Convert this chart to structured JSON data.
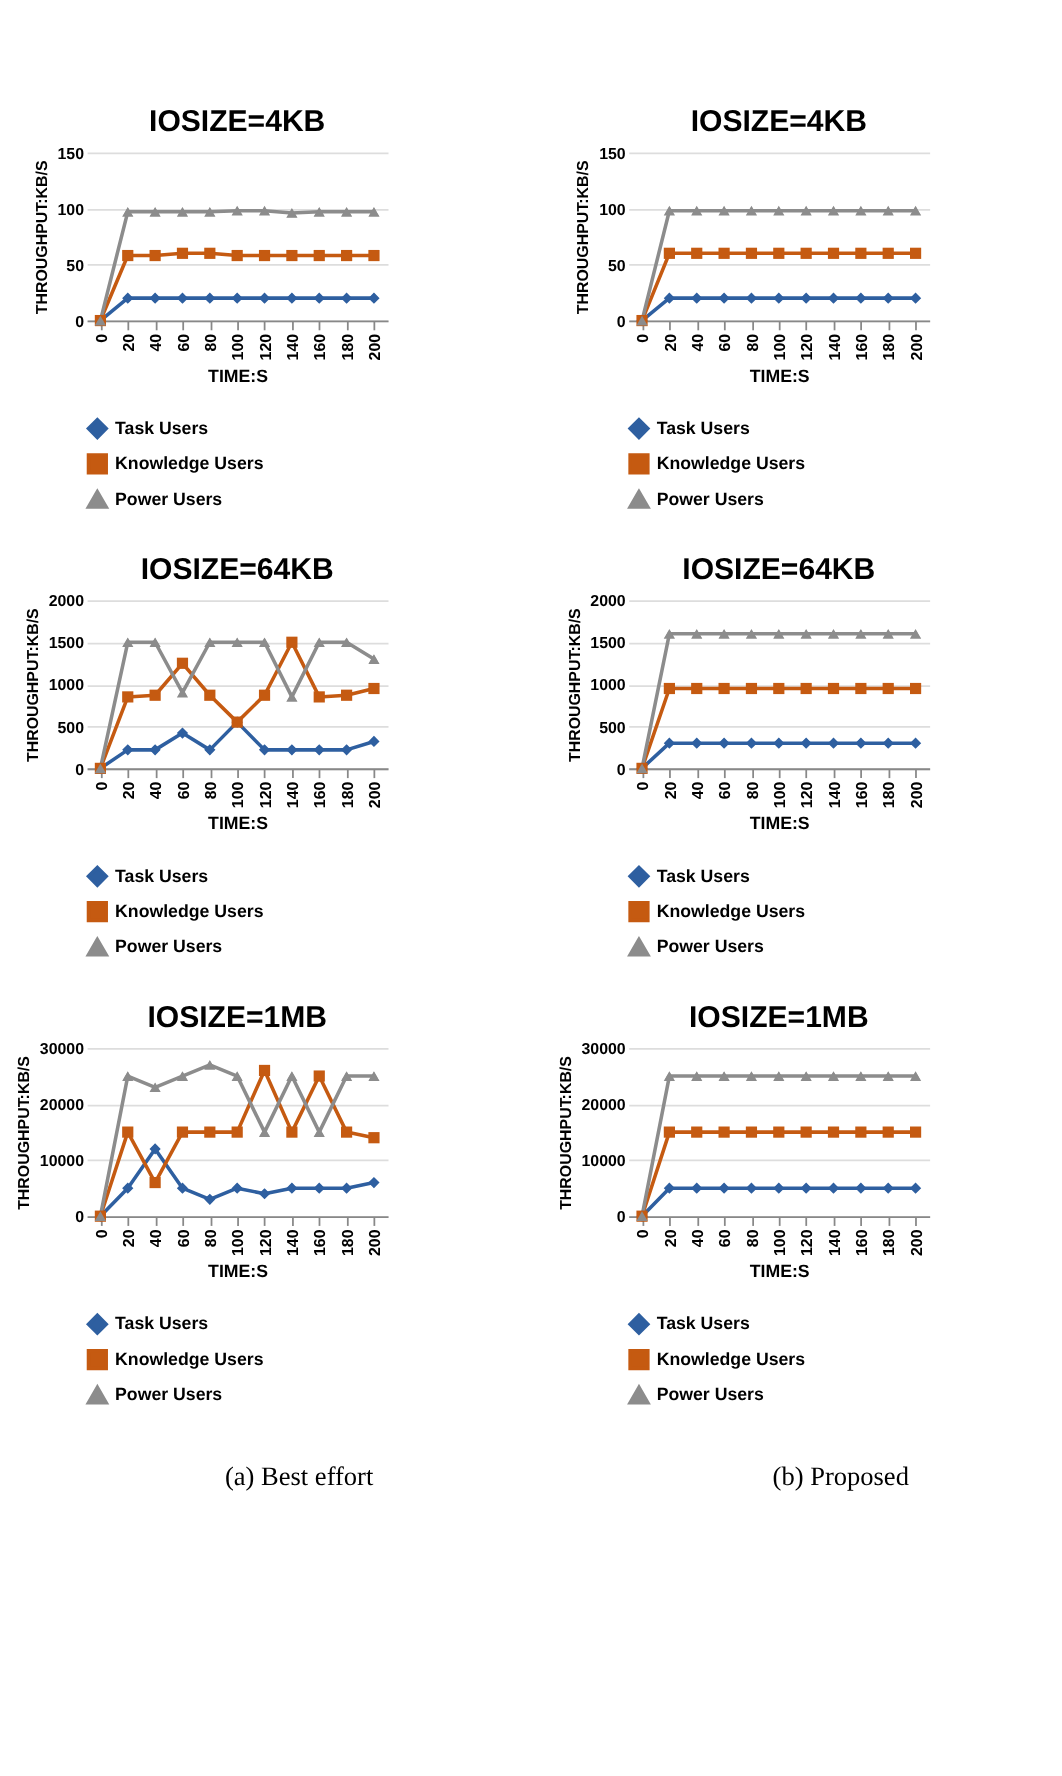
{
  "chart_data": [
    {
      "type": "line",
      "title": "IOSIZE=4KB",
      "xlabel": "TIME:S",
      "ylabel": "THROUGHPUT:KB/S",
      "categories": [
        "0",
        "20",
        "40",
        "60",
        "80",
        "100",
        "120",
        "140",
        "160",
        "180",
        "200"
      ],
      "ylim": [
        0,
        150
      ],
      "yticks": [
        0,
        50,
        100,
        150
      ],
      "grid": "y",
      "legend": "bottom",
      "series": [
        {
          "name": "Task Users",
          "color": "#2e5fa0",
          "marker": "diamond",
          "values": [
            0,
            20,
            20,
            20,
            20,
            20,
            20,
            20,
            20,
            20,
            20
          ]
        },
        {
          "name": "Knowledge Users",
          "color": "#c55a11",
          "marker": "square",
          "values": [
            0,
            58,
            58,
            60,
            60,
            58,
            58,
            58,
            58,
            58,
            58
          ]
        },
        {
          "name": "Power Users",
          "color": "#8c8c8c",
          "marker": "triangle",
          "values": [
            0,
            97,
            97,
            97,
            97,
            98,
            98,
            96,
            97,
            97,
            97
          ]
        }
      ]
    },
    {
      "type": "line",
      "title": "IOSIZE=4KB",
      "xlabel": "TIME:S",
      "ylabel": "THROUGHPUT:KB/S",
      "categories": [
        "0",
        "20",
        "40",
        "60",
        "80",
        "100",
        "120",
        "140",
        "160",
        "180",
        "200"
      ],
      "ylim": [
        0,
        150
      ],
      "yticks": [
        0,
        50,
        100,
        150
      ],
      "grid": "y",
      "legend": "bottom",
      "series": [
        {
          "name": "Task Users",
          "color": "#2e5fa0",
          "marker": "diamond",
          "values": [
            0,
            20,
            20,
            20,
            20,
            20,
            20,
            20,
            20,
            20,
            20
          ]
        },
        {
          "name": "Knowledge Users",
          "color": "#c55a11",
          "marker": "square",
          "values": [
            0,
            60,
            60,
            60,
            60,
            60,
            60,
            60,
            60,
            60,
            60
          ]
        },
        {
          "name": "Power Users",
          "color": "#8c8c8c",
          "marker": "triangle",
          "values": [
            0,
            98,
            98,
            98,
            98,
            98,
            98,
            98,
            98,
            98,
            98
          ]
        }
      ]
    },
    {
      "type": "line",
      "title": "IOSIZE=64KB",
      "xlabel": "TIME:S",
      "ylabel": "THROUGHPUT:KB/S",
      "categories": [
        "0",
        "20",
        "40",
        "60",
        "80",
        "100",
        "120",
        "140",
        "160",
        "180",
        "200"
      ],
      "ylim": [
        0,
        2000
      ],
      "yticks": [
        0,
        500,
        1000,
        1500,
        2000
      ],
      "grid": "y",
      "legend": "bottom",
      "series": [
        {
          "name": "Task Users",
          "color": "#2e5fa0",
          "marker": "diamond",
          "values": [
            0,
            220,
            220,
            420,
            220,
            550,
            220,
            220,
            220,
            220,
            320
          ]
        },
        {
          "name": "Knowledge Users",
          "color": "#c55a11",
          "marker": "square",
          "values": [
            0,
            850,
            870,
            1250,
            870,
            550,
            870,
            1500,
            850,
            870,
            950
          ]
        },
        {
          "name": "Power Users",
          "color": "#8c8c8c",
          "marker": "triangle",
          "values": [
            0,
            1500,
            1500,
            900,
            1500,
            1500,
            1500,
            850,
            1500,
            1500,
            1300
          ]
        }
      ]
    },
    {
      "type": "line",
      "title": "IOSIZE=64KB",
      "xlabel": "TIME:S",
      "ylabel": "THROUGHPUT:KB/S",
      "categories": [
        "0",
        "20",
        "40",
        "60",
        "80",
        "100",
        "120",
        "140",
        "160",
        "180",
        "200"
      ],
      "ylim": [
        0,
        2000
      ],
      "yticks": [
        0,
        500,
        1000,
        1500,
        2000
      ],
      "grid": "y",
      "legend": "bottom",
      "series": [
        {
          "name": "Task Users",
          "color": "#2e5fa0",
          "marker": "diamond",
          "values": [
            0,
            300,
            300,
            300,
            300,
            300,
            300,
            300,
            300,
            300,
            300
          ]
        },
        {
          "name": "Knowledge Users",
          "color": "#c55a11",
          "marker": "square",
          "values": [
            0,
            950,
            950,
            950,
            950,
            950,
            950,
            950,
            950,
            950,
            950
          ]
        },
        {
          "name": "Power Users",
          "color": "#8c8c8c",
          "marker": "triangle",
          "values": [
            0,
            1600,
            1600,
            1600,
            1600,
            1600,
            1600,
            1600,
            1600,
            1600,
            1600
          ]
        }
      ]
    },
    {
      "type": "line",
      "title": "IOSIZE=1MB",
      "xlabel": "TIME:S",
      "ylabel": "THROUGHPUT:KB/S",
      "categories": [
        "0",
        "20",
        "40",
        "60",
        "80",
        "100",
        "120",
        "140",
        "160",
        "180",
        "200"
      ],
      "ylim": [
        0,
        30000
      ],
      "yticks": [
        0,
        10000,
        20000,
        30000
      ],
      "grid": "y",
      "legend": "bottom",
      "annotations": [
        "(a) Best effort"
      ],
      "series": [
        {
          "name": "Task Users",
          "color": "#2e5fa0",
          "marker": "diamond",
          "values": [
            0,
            5000,
            12000,
            5000,
            3000,
            5000,
            4000,
            5000,
            5000,
            5000,
            6000
          ]
        },
        {
          "name": "Knowledge Users",
          "color": "#c55a11",
          "marker": "square",
          "values": [
            0,
            15000,
            6000,
            15000,
            15000,
            15000,
            26000,
            15000,
            25000,
            15000,
            14000
          ]
        },
        {
          "name": "Power Users",
          "color": "#8c8c8c",
          "marker": "triangle",
          "values": [
            0,
            25000,
            23000,
            25000,
            27000,
            25000,
            15000,
            25000,
            15000,
            25000,
            25000
          ]
        }
      ]
    },
    {
      "type": "line",
      "title": "IOSIZE=1MB",
      "xlabel": "TIME:S",
      "ylabel": "THROUGHPUT:KB/S",
      "categories": [
        "0",
        "20",
        "40",
        "60",
        "80",
        "100",
        "120",
        "140",
        "160",
        "180",
        "200"
      ],
      "ylim": [
        0,
        30000
      ],
      "yticks": [
        0,
        10000,
        20000,
        30000
      ],
      "grid": "y",
      "legend": "bottom",
      "annotations": [
        "(b) Proposed"
      ],
      "series": [
        {
          "name": "Task Users",
          "color": "#2e5fa0",
          "marker": "diamond",
          "values": [
            0,
            5000,
            5000,
            5000,
            5000,
            5000,
            5000,
            5000,
            5000,
            5000,
            5000
          ]
        },
        {
          "name": "Knowledge Users",
          "color": "#c55a11",
          "marker": "square",
          "values": [
            0,
            15000,
            15000,
            15000,
            15000,
            15000,
            15000,
            15000,
            15000,
            15000,
            15000
          ]
        },
        {
          "name": "Power Users",
          "color": "#8c8c8c",
          "marker": "triangle",
          "values": [
            0,
            25000,
            25000,
            25000,
            25000,
            25000,
            25000,
            25000,
            25000,
            25000,
            25000
          ]
        }
      ]
    }
  ]
}
